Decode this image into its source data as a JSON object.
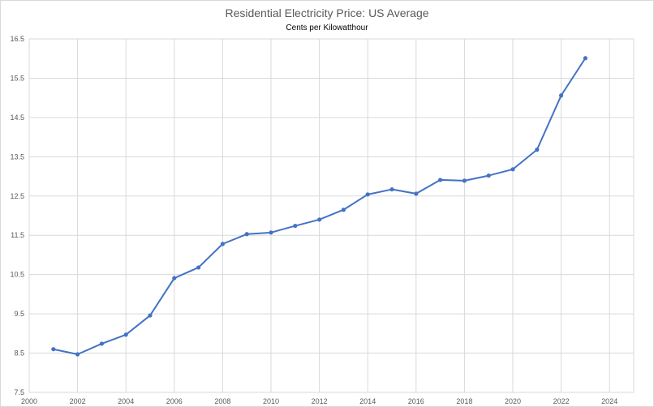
{
  "chart_data": {
    "type": "line",
    "title": "Residential Electricity Price: US Average",
    "subtitle": "Cents per Kilowatthour",
    "xlabel": "",
    "ylabel": "",
    "xlim": [
      2000,
      2025
    ],
    "ylim": [
      7.5,
      16.5
    ],
    "xticks": [
      2000,
      2002,
      2004,
      2006,
      2008,
      2010,
      2012,
      2014,
      2016,
      2018,
      2020,
      2022,
      2024
    ],
    "yticks": [
      7.5,
      8.5,
      9.5,
      10.5,
      11.5,
      12.5,
      13.5,
      14.5,
      15.5,
      16.5
    ],
    "grid": true,
    "legend": "none",
    "series": [
      {
        "color": "#4472c4",
        "marker": "circle",
        "x": [
          2001,
          2002,
          2003,
          2004,
          2005,
          2006,
          2007,
          2008,
          2009,
          2010,
          2011,
          2012,
          2013,
          2014,
          2015,
          2016,
          2017,
          2018,
          2019,
          2020,
          2021,
          2022,
          2023
        ],
        "y": [
          8.6,
          8.47,
          8.74,
          8.97,
          9.46,
          10.41,
          10.68,
          11.28,
          11.53,
          11.57,
          11.74,
          11.9,
          12.15,
          12.54,
          12.67,
          12.56,
          12.91,
          12.89,
          13.02,
          13.18,
          13.68,
          15.06,
          16.01
        ]
      }
    ]
  }
}
